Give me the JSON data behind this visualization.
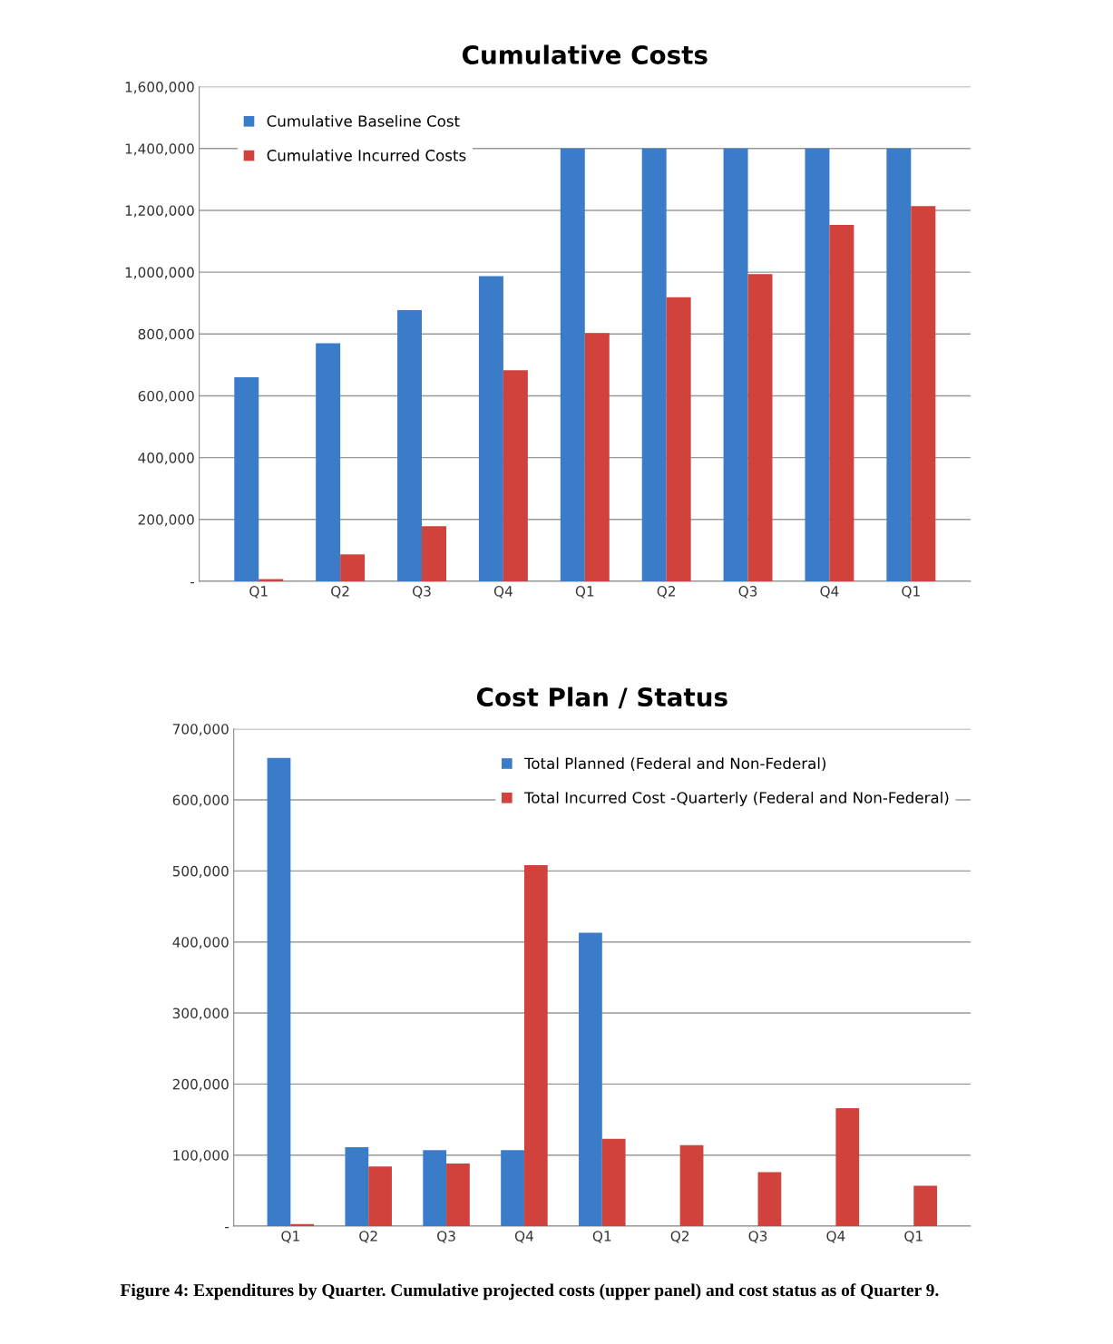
{
  "chart_data": [
    {
      "type": "bar",
      "title": "Cumulative Costs",
      "categories": [
        "Q1",
        "Q2",
        "Q3",
        "Q4",
        "Q1",
        "Q2",
        "Q3",
        "Q4",
        "Q1"
      ],
      "series": [
        {
          "name": "Cumulative Baseline Cost",
          "color": "#3b7cc9",
          "values": [
            660000,
            770000,
            877000,
            987000,
            1400000,
            1400000,
            1400000,
            1400000,
            1400000
          ]
        },
        {
          "name": "Cumulative Incurred Costs",
          "color": "#d0423b",
          "values": [
            7000,
            87000,
            178000,
            683000,
            803000,
            919000,
            994000,
            1153000,
            1214000
          ]
        }
      ],
      "ylim": [
        0,
        1600000
      ],
      "yticks": [
        {
          "value": 0,
          "label": "-"
        },
        {
          "value": 200000,
          "label": "200,000"
        },
        {
          "value": 400000,
          "label": "400,000"
        },
        {
          "value": 600000,
          "label": "600,000"
        },
        {
          "value": 800000,
          "label": "800,000"
        },
        {
          "value": 1000000,
          "label": "1,000,000"
        },
        {
          "value": 1200000,
          "label": "1,200,000"
        },
        {
          "value": 1400000,
          "label": "1,400,000"
        },
        {
          "value": 1600000,
          "label": "1,600,000"
        }
      ],
      "grid": "y",
      "legend": "top left"
    },
    {
      "type": "bar",
      "title": "Cost Plan / Status",
      "categories": [
        "Q1",
        "Q2",
        "Q3",
        "Q4",
        "Q1",
        "Q2",
        "Q3",
        "Q4",
        "Q1"
      ],
      "series": [
        {
          "name": "Total Planned (Federal and Non-Federal)",
          "color": "#3b7cc9",
          "values": [
            659000,
            111000,
            107000,
            107000,
            413000,
            0,
            0,
            0,
            0
          ]
        },
        {
          "name": "Total Incurred Cost -Quarterly (Federal and Non-Federal)",
          "color": "#d0423b",
          "values": [
            3000,
            84000,
            88000,
            508000,
            123000,
            114000,
            76000,
            166000,
            57000
          ]
        }
      ],
      "ylim": [
        0,
        700000
      ],
      "yticks": [
        {
          "value": 0,
          "label": "-"
        },
        {
          "value": 100000,
          "label": "100,000"
        },
        {
          "value": 200000,
          "label": "200,000"
        },
        {
          "value": 300000,
          "label": "300,000"
        },
        {
          "value": 400000,
          "label": "400,000"
        },
        {
          "value": 500000,
          "label": "500,000"
        },
        {
          "value": 600000,
          "label": "600,000"
        },
        {
          "value": 700000,
          "label": "700,000"
        }
      ],
      "grid": "y",
      "legend": "top right",
      "annotations": [
        "Figure 4: Expenditures by Quarter. Cumulative projected costs (upper panel) and cost status as of Quarter 9."
      ]
    }
  ]
}
